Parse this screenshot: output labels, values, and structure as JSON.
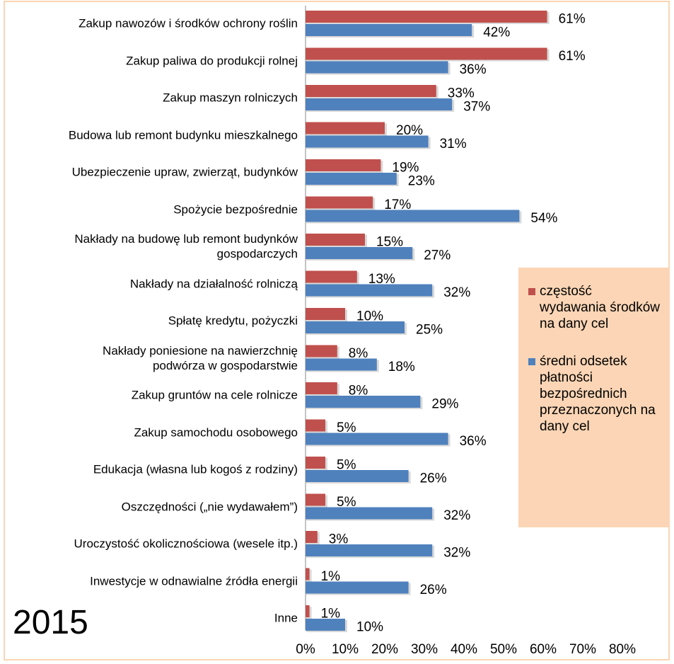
{
  "chart_data": {
    "type": "bar",
    "orientation": "horizontal",
    "annotation": "2015",
    "categories": [
      "Zakup nawozów i środków ochrony roślin",
      "Zakup paliwa do produkcji rolnej",
      "Zakup maszyn rolniczych",
      "Budowa lub remont budynku mieszkalnego",
      "Ubezpieczenie upraw, zwierząt, budynków",
      "Spożycie bezpośrednie",
      "Nakłady na budowę lub remont budynków\ngospodarczych",
      "Nakłady na działalność rolniczą",
      "Spłatę kredytu, pożyczki",
      "Nakłady poniesione na nawierzchnię\npodwórza w gospodarstwie",
      "Zakup gruntów na cele rolnicze",
      "Zakup samochodu osobowego",
      "Edukacja (własna lub kogoś z rodziny)",
      "Oszczędności („nie wydawałem”)",
      "Uroczystość okolicznościowa (wesele itp.)",
      "Inwestycje w odnawialne źródła energii",
      "Inne"
    ],
    "series": [
      {
        "name": "częstość wydawania środków na dany cel",
        "color": "#c0504d",
        "values": [
          61,
          61,
          33,
          20,
          19,
          17,
          15,
          13,
          10,
          8,
          8,
          5,
          5,
          5,
          3,
          1,
          1
        ],
        "value_labels": [
          "61%",
          "61%",
          "33%",
          "20%",
          "19%",
          "17%",
          "15%",
          "13%",
          "10%",
          "8%",
          "8%",
          "5%",
          "5%",
          "5%",
          "3%",
          "1%",
          "1%"
        ]
      },
      {
        "name": "średni odsetek płatności bezpośrednich przeznaczonych na dany cel",
        "color": "#4f81bd",
        "values": [
          42,
          36,
          37,
          31,
          23,
          54,
          27,
          32,
          25,
          18,
          29,
          36,
          26,
          32,
          32,
          26,
          10
        ],
        "value_labels": [
          "42%",
          "36%",
          "37%",
          "31%",
          "23%",
          "54%",
          "27%",
          "32%",
          "25%",
          "18%",
          "29%",
          "36%",
          "26%",
          "32%",
          "32%",
          "26%",
          "10%"
        ]
      }
    ],
    "xlim": [
      0,
      80
    ],
    "xticks": [
      {
        "value": 0,
        "label": "0%"
      },
      {
        "value": 10,
        "label": "10%"
      },
      {
        "value": 20,
        "label": "20%"
      },
      {
        "value": 30,
        "label": "30%"
      },
      {
        "value": 40,
        "label": "40%"
      },
      {
        "value": 50,
        "label": "50%"
      },
      {
        "value": 60,
        "label": "60%"
      },
      {
        "value": 70,
        "label": "70%"
      },
      {
        "value": 80,
        "label": "80%"
      }
    ],
    "legend": "right"
  }
}
